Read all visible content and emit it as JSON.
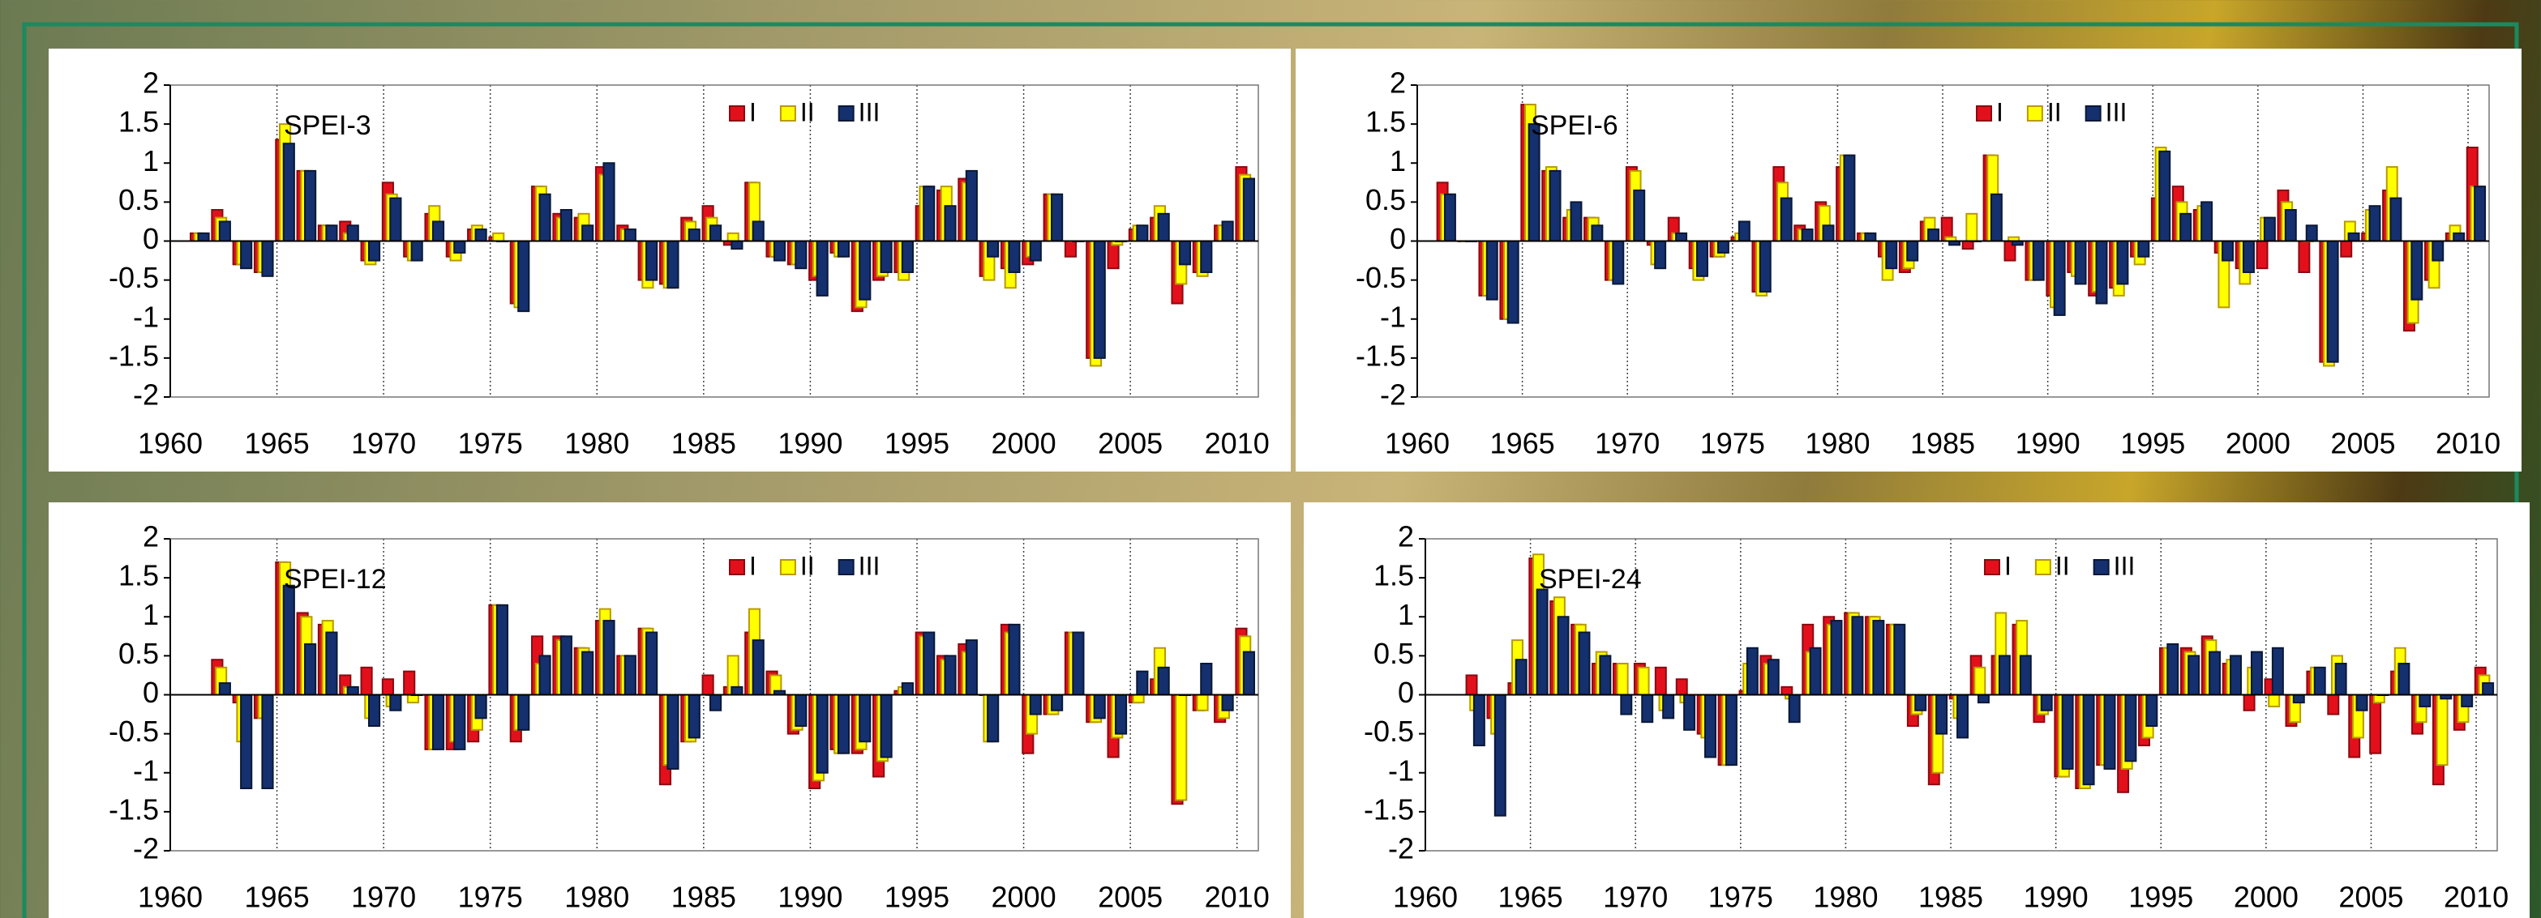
{
  "chart_data": [
    {
      "type": "bar",
      "title": "SPEI-3",
      "x": [
        1961,
        1962,
        1963,
        1964,
        1965,
        1966,
        1967,
        1968,
        1969,
        1970,
        1971,
        1972,
        1973,
        1974,
        1975,
        1976,
        1977,
        1978,
        1979,
        1980,
        1981,
        1982,
        1983,
        1984,
        1985,
        1986,
        1987,
        1988,
        1989,
        1990,
        1991,
        1992,
        1993,
        1994,
        1995,
        1996,
        1997,
        1998,
        1999,
        2000,
        2001,
        2002,
        2003,
        2004,
        2005,
        2006,
        2007,
        2008,
        2009,
        2010
      ],
      "series": [
        {
          "name": "I",
          "color": "#e3101c",
          "values": [
            0.1,
            0.4,
            -0.3,
            -0.4,
            1.3,
            0.9,
            0.2,
            0.25,
            -0.25,
            0.75,
            -0.2,
            0.35,
            -0.2,
            0.15,
            0.05,
            -0.8,
            0.7,
            0.35,
            0.3,
            0.95,
            0.2,
            -0.5,
            -0.55,
            0.3,
            0.45,
            -0.05,
            0.75,
            -0.2,
            -0.3,
            -0.5,
            -0.15,
            -0.9,
            -0.5,
            -0.4,
            0.45,
            0.65,
            0.8,
            -0.45,
            -0.35,
            -0.3,
            0.6,
            -0.2,
            -1.5,
            -0.35,
            0.15,
            0.3,
            -0.8,
            -0.4,
            0.2,
            0.95
          ]
        },
        {
          "name": "II",
          "color": "#ffff00",
          "values": [
            0.1,
            0.3,
            -0.3,
            -0.4,
            1.5,
            0.9,
            0.2,
            0.1,
            -0.3,
            0.6,
            -0.25,
            0.45,
            -0.25,
            0.2,
            0.1,
            -0.85,
            0.7,
            0.3,
            0.35,
            0.85,
            0.15,
            -0.6,
            -0.6,
            0.25,
            0.3,
            0.1,
            0.75,
            -0.2,
            -0.3,
            -0.45,
            -0.2,
            -0.85,
            -0.45,
            -0.5,
            0.7,
            0.7,
            0.75,
            -0.5,
            -0.6,
            -0.2,
            0.6,
            0,
            -1.6,
            -0.05,
            0.2,
            0.45,
            -0.55,
            -0.45,
            0.2,
            0.85
          ]
        },
        {
          "name": "III",
          "color": "#15306e",
          "values": [
            0.1,
            0.25,
            -0.35,
            -0.45,
            1.25,
            0.9,
            0.2,
            0.2,
            -0.25,
            0.55,
            -0.25,
            0.25,
            -0.15,
            0.15,
            0,
            -0.9,
            0.6,
            0.4,
            0.2,
            1.0,
            0.15,
            -0.5,
            -0.6,
            0.15,
            0.2,
            -0.1,
            0.25,
            -0.25,
            -0.35,
            -0.7,
            -0.2,
            -0.75,
            -0.4,
            -0.4,
            0.7,
            0.45,
            0.9,
            -0.2,
            -0.4,
            -0.25,
            0.6,
            0,
            -1.5,
            0,
            0.2,
            0.35,
            -0.3,
            -0.4,
            0.25,
            0.8
          ]
        }
      ],
      "xlim": [
        1960,
        2011
      ],
      "xticks": [
        1960,
        1965,
        1970,
        1975,
        1980,
        1985,
        1990,
        1995,
        2000,
        2005,
        2010
      ],
      "ylim": [
        -2,
        2
      ],
      "yticks": [
        2,
        1.5,
        1,
        0.5,
        0,
        -0.5,
        -1,
        -1.5,
        -2
      ],
      "grid": "x"
    },
    {
      "type": "bar",
      "title": "SPEI-6",
      "x": [
        1961,
        1962,
        1963,
        1964,
        1965,
        1966,
        1967,
        1968,
        1969,
        1970,
        1971,
        1972,
        1973,
        1974,
        1975,
        1976,
        1977,
        1978,
        1979,
        1980,
        1981,
        1982,
        1983,
        1984,
        1985,
        1986,
        1987,
        1988,
        1989,
        1990,
        1991,
        1992,
        1993,
        1994,
        1995,
        1996,
        1997,
        1998,
        1999,
        2000,
        2001,
        2002,
        2003,
        2004,
        2005,
        2006,
        2007,
        2008,
        2009,
        2010
      ],
      "series": [
        {
          "name": "I",
          "color": "#e3101c",
          "values": [
            0.75,
            0,
            -0.7,
            -1.0,
            1.75,
            0.9,
            0.3,
            0.3,
            -0.5,
            0.95,
            -0.05,
            0.3,
            -0.35,
            -0.2,
            0.05,
            -0.65,
            0.95,
            0.2,
            0.5,
            0.95,
            0.1,
            -0.2,
            -0.4,
            0.25,
            0.3,
            -0.1,
            1.1,
            -0.25,
            -0.5,
            -0.7,
            -0.4,
            -0.7,
            -0.6,
            -0.2,
            0.55,
            0.7,
            0.4,
            -0.15,
            -0.35,
            -0.35,
            0.65,
            -0.4,
            -1.55,
            -0.2,
            0.1,
            0.65,
            -1.15,
            -0.5,
            0.1,
            1.2
          ]
        },
        {
          "name": "II",
          "color": "#ffff00",
          "values": [
            0.6,
            0,
            -0.7,
            -1.0,
            1.75,
            0.95,
            0.4,
            0.3,
            -0.5,
            0.9,
            -0.3,
            0.1,
            -0.5,
            -0.2,
            0.1,
            -0.7,
            0.75,
            0.15,
            0.45,
            1.1,
            0.1,
            -0.5,
            -0.35,
            0.3,
            0.05,
            0.35,
            1.1,
            0.05,
            -0.5,
            -0.85,
            -0.45,
            -0.65,
            -0.7,
            -0.3,
            1.2,
            0.5,
            0.45,
            -0.85,
            -0.55,
            0.3,
            0.5,
            0,
            -1.6,
            0.25,
            0.4,
            0.95,
            -1.05,
            -0.6,
            0.2,
            0.7
          ]
        },
        {
          "name": "III",
          "color": "#15306e",
          "values": [
            0.6,
            0,
            -0.75,
            -1.05,
            1.5,
            0.9,
            0.5,
            0.2,
            -0.55,
            0.65,
            -0.35,
            0.1,
            -0.45,
            -0.15,
            0.25,
            -0.65,
            0.55,
            0.15,
            0.2,
            1.1,
            0.1,
            -0.35,
            -0.25,
            0.15,
            -0.05,
            0,
            0.6,
            -0.05,
            -0.5,
            -0.95,
            -0.55,
            -0.8,
            -0.55,
            -0.2,
            1.15,
            0.35,
            0.5,
            -0.25,
            -0.4,
            0.3,
            0.4,
            0.2,
            -1.55,
            0.1,
            0.45,
            0.55,
            -0.75,
            -0.25,
            0.1,
            0.7
          ]
        }
      ],
      "xlim": [
        1960,
        2011
      ],
      "xticks": [
        1960,
        1965,
        1970,
        1975,
        1980,
        1985,
        1990,
        1995,
        2000,
        2005,
        2010
      ],
      "ylim": [
        -2,
        2
      ],
      "yticks": [
        2,
        1.5,
        1,
        0.5,
        0,
        -0.5,
        -1,
        -1.5,
        -2
      ],
      "grid": "x"
    },
    {
      "type": "bar",
      "title": "SPEI-12",
      "x": [
        1961,
        1962,
        1963,
        1964,
        1965,
        1966,
        1967,
        1968,
        1969,
        1970,
        1971,
        1972,
        1973,
        1974,
        1975,
        1976,
        1977,
        1978,
        1979,
        1980,
        1981,
        1982,
        1983,
        1984,
        1985,
        1986,
        1987,
        1988,
        1989,
        1990,
        1991,
        1992,
        1993,
        1994,
        1995,
        1996,
        1997,
        1998,
        1999,
        2000,
        2001,
        2002,
        2003,
        2004,
        2005,
        2006,
        2007,
        2008,
        2009,
        2010
      ],
      "series": [
        {
          "name": "I",
          "color": "#e3101c",
          "values": [
            null,
            0.45,
            -0.1,
            -0.3,
            1.7,
            1.05,
            0.9,
            0.25,
            0.35,
            0.2,
            0.3,
            -0.7,
            -0.7,
            -0.6,
            1.15,
            -0.6,
            0.75,
            0.75,
            0.6,
            0.95,
            0.5,
            0.85,
            -1.15,
            -0.6,
            0.25,
            0.1,
            0.8,
            0.3,
            -0.5,
            -1.2,
            -0.7,
            -0.75,
            -1.05,
            0.05,
            0.8,
            0.5,
            0.65,
            0,
            0.9,
            -0.75,
            -0.25,
            0.8,
            -0.35,
            -0.8,
            -0.1,
            0.2,
            -1.4,
            -0.2,
            -0.35,
            0.85
          ]
        },
        {
          "name": "II",
          "color": "#ffff00",
          "values": [
            null,
            0.35,
            -0.6,
            -0.3,
            1.7,
            1.0,
            0.95,
            0.1,
            -0.3,
            -0.15,
            -0.1,
            -0.7,
            -0.6,
            -0.45,
            1.15,
            -0.45,
            0.4,
            0.7,
            0.6,
            1.1,
            0.5,
            0.85,
            -0.9,
            -0.6,
            0,
            0.5,
            1.1,
            0.25,
            -0.45,
            -1.1,
            -0.75,
            -0.7,
            -0.85,
            0.1,
            0.75,
            0.45,
            0.55,
            -0.6,
            0.8,
            -0.5,
            -0.25,
            0.8,
            -0.35,
            -0.55,
            -0.1,
            0.6,
            -1.35,
            -0.2,
            -0.3,
            0.75
          ]
        },
        {
          "name": "III",
          "color": "#15306e",
          "values": [
            null,
            0.15,
            -1.2,
            -1.2,
            1.4,
            0.65,
            0.8,
            0.1,
            -0.4,
            -0.2,
            0,
            -0.7,
            -0.7,
            -0.3,
            1.15,
            -0.45,
            0.5,
            0.75,
            0.55,
            0.95,
            0.5,
            0.8,
            -0.95,
            -0.55,
            -0.2,
            0.1,
            0.7,
            0.05,
            -0.4,
            -1.0,
            -0.75,
            -0.6,
            -0.8,
            0.15,
            0.8,
            0.5,
            0.7,
            -0.6,
            0.9,
            -0.25,
            -0.2,
            0.8,
            -0.3,
            -0.5,
            0.3,
            0.35,
            0,
            0.4,
            -0.2,
            0.55
          ]
        }
      ],
      "xlim": [
        1960,
        2011
      ],
      "xticks": [
        1960,
        1965,
        1970,
        1975,
        1980,
        1985,
        1990,
        1995,
        2000,
        2005,
        2010
      ],
      "ylim": [
        -2,
        2
      ],
      "yticks": [
        2,
        1.5,
        1,
        0.5,
        0,
        -0.5,
        -1,
        -1.5,
        -2
      ],
      "grid": "x"
    },
    {
      "type": "bar",
      "title": "SPEI-24",
      "x": [
        1961,
        1962,
        1963,
        1964,
        1965,
        1966,
        1967,
        1968,
        1969,
        1970,
        1971,
        1972,
        1973,
        1974,
        1975,
        1976,
        1977,
        1978,
        1979,
        1980,
        1981,
        1982,
        1983,
        1984,
        1985,
        1986,
        1987,
        1988,
        1989,
        1990,
        1991,
        1992,
        1993,
        1994,
        1995,
        1996,
        1997,
        1998,
        1999,
        2000,
        2001,
        2002,
        2003,
        2004,
        2005,
        2006,
        2007,
        2008,
        2009,
        2010
      ],
      "series": [
        {
          "name": "I",
          "color": "#e3101c",
          "values": [
            null,
            0.25,
            -0.3,
            0.15,
            1.75,
            1.2,
            0.9,
            0.4,
            0.4,
            0.4,
            0.35,
            0.2,
            -0.5,
            -0.9,
            0.05,
            0.5,
            0.1,
            0.9,
            1.0,
            1.05,
            1.0,
            0.9,
            -0.4,
            -1.15,
            -0.05,
            0.5,
            0.5,
            0.9,
            -0.35,
            -1.05,
            -1.2,
            -0.9,
            -1.25,
            -0.65,
            0.6,
            0.6,
            0.75,
            0.4,
            -0.2,
            0.2,
            -0.4,
            0.3,
            -0.25,
            -0.8,
            -0.75,
            0.3,
            -0.5,
            -1.15,
            -0.45,
            0.35
          ]
        },
        {
          "name": "II",
          "color": "#ffff00",
          "values": [
            null,
            -0.2,
            -0.5,
            0.7,
            1.8,
            1.25,
            0.9,
            0.55,
            0.4,
            0.35,
            -0.2,
            -0.1,
            -0.55,
            -0.9,
            0.4,
            0.4,
            -0.05,
            0.55,
            0.9,
            1.05,
            1.0,
            0.9,
            -0.25,
            -1.0,
            -0.3,
            0.35,
            1.05,
            0.95,
            -0.25,
            -1.05,
            -1.2,
            -0.9,
            -0.95,
            -0.55,
            0.6,
            0.55,
            0.7,
            0.45,
            0.35,
            -0.15,
            -0.35,
            0.35,
            0.5,
            -0.55,
            -0.1,
            0.6,
            -0.35,
            -0.9,
            -0.35,
            0.25
          ]
        },
        {
          "name": "III",
          "color": "#15306e",
          "values": [
            null,
            -0.65,
            -1.55,
            0.45,
            1.35,
            1.0,
            0.8,
            0.5,
            -0.25,
            -0.35,
            -0.3,
            -0.45,
            -0.8,
            -0.9,
            0.6,
            0.45,
            -0.35,
            0.6,
            0.95,
            1.0,
            0.95,
            0.9,
            -0.2,
            -0.5,
            -0.55,
            -0.1,
            0.5,
            0.5,
            -0.2,
            -0.95,
            -1.15,
            -0.95,
            -0.85,
            -0.4,
            0.65,
            0.5,
            0.55,
            0.5,
            0.55,
            0.6,
            -0.1,
            0.35,
            0.4,
            -0.2,
            0,
            0.4,
            -0.15,
            -0.05,
            -0.15,
            0.15
          ]
        }
      ],
      "xlim": [
        1960,
        2011
      ],
      "xticks": [
        1960,
        1965,
        1970,
        1975,
        1980,
        1985,
        1990,
        1995,
        2000,
        2005,
        2010
      ],
      "ylim": [
        -2,
        2
      ],
      "yticks": [
        2,
        1.5,
        1,
        0.5,
        0,
        -0.5,
        -1,
        -1.5,
        -2
      ],
      "grid": "x"
    }
  ]
}
